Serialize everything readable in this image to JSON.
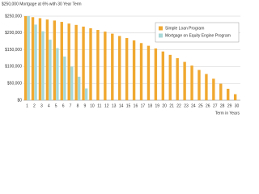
{
  "chart_data": {
    "type": "bar",
    "title": "$250,000 Mortgage at 6% with 30 Year Term",
    "x_label": "Term in Years",
    "categories": [
      "1",
      "2",
      "3",
      "4",
      "5",
      "6",
      "7",
      "8",
      "9",
      "10",
      "11",
      "12",
      "13",
      "14",
      "15",
      "16",
      "17",
      "18",
      "19",
      "20",
      "21",
      "22",
      "23",
      "24",
      "25",
      "26",
      "27",
      "28",
      "29",
      "30"
    ],
    "series": [
      {
        "name": "Simple Loan Program",
        "color": "#f0a830",
        "values": [
          250000,
          247000,
          244000,
          240000,
          237000,
          233000,
          228000,
          224000,
          219000,
          214000,
          209000,
          204000,
          198000,
          191000,
          185000,
          178000,
          170000,
          162000,
          154000,
          145000,
          135000,
          125000,
          114000,
          103000,
          90000,
          78000,
          64000,
          49000,
          34000,
          18000
        ]
      },
      {
        "name": "Mortgage on Equity Engine Program",
        "color": "#a8d8d8",
        "values": [
          250000,
          225000,
          205000,
          180000,
          155000,
          130000,
          100000,
          70000,
          35000,
          null,
          null,
          null,
          null,
          null,
          null,
          null,
          null,
          null,
          null,
          null,
          null,
          null,
          null,
          null,
          null,
          null,
          null,
          null,
          null,
          null
        ]
      }
    ],
    "ylim": [
      0,
      250000
    ],
    "yticks": [
      {
        "value": 0,
        "label": "$0"
      },
      {
        "value": 50000,
        "label": "$50,000"
      },
      {
        "value": 100000,
        "label": "$100,000"
      },
      {
        "value": 150000,
        "label": "$150,000"
      },
      {
        "value": 200000,
        "label": "$200,000"
      },
      {
        "value": 250000,
        "label": "$250,000"
      }
    ],
    "grid": true,
    "legend": "upper right"
  }
}
